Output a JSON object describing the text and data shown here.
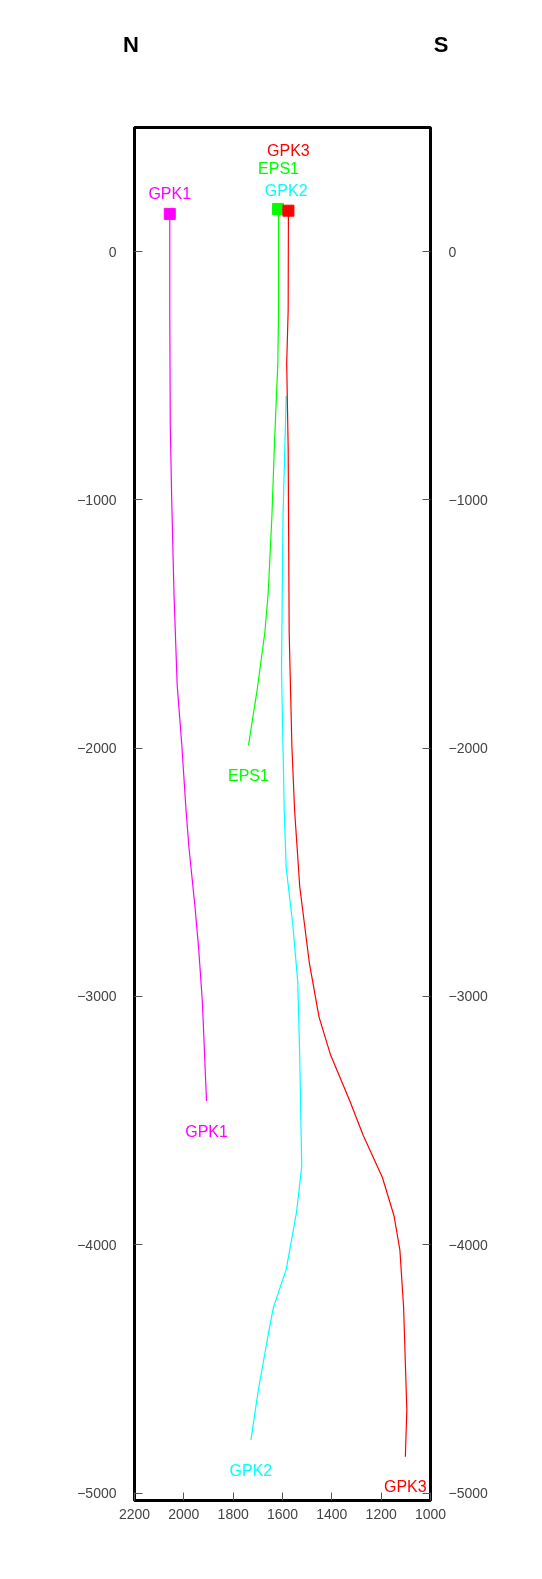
{
  "chart_data": {
    "type": "line",
    "xlim": [
      2200,
      1000
    ],
    "xticks": [
      2200,
      2000,
      1800,
      1600,
      1400,
      1200,
      1000
    ],
    "ylim": [
      -5030,
      500
    ],
    "yticks": [
      0,
      -1000,
      -2000,
      -3000,
      -4000,
      -5000
    ],
    "y2lim": [
      -5030,
      500
    ],
    "y2ticks": [
      0,
      -1000,
      -2000,
      -3000,
      -4000,
      -5000
    ],
    "grid": false,
    "legend": false,
    "line_style": "solid",
    "series": [
      {
        "name": "GPK1",
        "color": "#ff00ff",
        "x": [
          2057,
          2057,
          2055,
          2049,
          2040,
          2027,
          2008,
          1991,
          1979,
          1955,
          1940,
          1925,
          1908
        ],
        "values": [
          152,
          -235,
          -698,
          -1006,
          -1375,
          -1745,
          -1991,
          -2250,
          -2403,
          -2636,
          -2805,
          -3019,
          -3421
        ]
      },
      {
        "name": "GPK2",
        "color": "#00ffff",
        "x": [
          1585,
          1598,
          1604,
          1593,
          1585,
          1558,
          1538,
          1530,
          1522,
          1543,
          1585,
          1637,
          1652,
          1698,
          1710,
          1728
        ],
        "values": [
          -580,
          -1067,
          -1683,
          -2250,
          -2482,
          -2713,
          -2943,
          -3252,
          -3683,
          -3868,
          -4099,
          -4253,
          -4330,
          -4585,
          -4666,
          -4787
        ]
      },
      {
        "name": "EPS1",
        "color": "#00ff00",
        "x": [
          1616,
          1616,
          1619,
          1632,
          1643,
          1658,
          1671,
          1702,
          1738
        ],
        "values": [
          172,
          -235,
          -451,
          -759,
          -1067,
          -1375,
          -1529,
          -1760,
          -1989
        ]
      },
      {
        "name": "GPK3",
        "color": "#ff0000",
        "x": [
          1576,
          1577,
          1583,
          1577,
          1573,
          1562,
          1551,
          1530,
          1491,
          1452,
          1405,
          1327,
          1273,
          1195,
          1148,
          1124,
          1109,
          1096,
          1102
        ],
        "values": [
          165,
          -235,
          -451,
          -790,
          -1529,
          -1991,
          -2250,
          -2558,
          -2866,
          -3082,
          -3236,
          -3421,
          -3559,
          -3729,
          -3883,
          -4022,
          -4253,
          -4666,
          -4854
        ]
      },
      {
        "type": "scatter",
        "marker": "square",
        "x": [
          2057,
          1618,
          1576
        ],
        "values": [
          152,
          172,
          165
        ],
        "colors": [
          "#ff00ff",
          "#00ff00",
          "#ff0000"
        ]
      }
    ],
    "annotations": [
      "N",
      "S"
    ]
  }
}
